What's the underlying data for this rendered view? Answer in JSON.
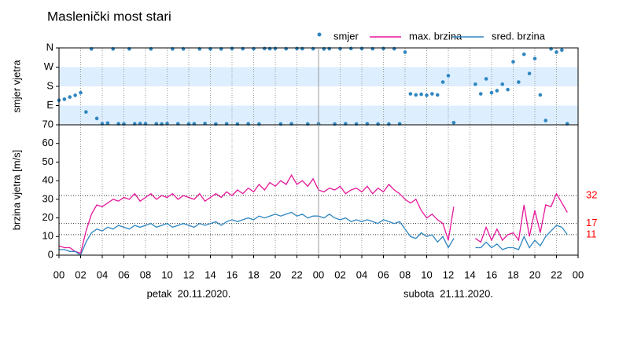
{
  "chart_data": [
    {
      "type": "scatter",
      "title": "Maslenički most stari",
      "ylabel": "smjer vjetra",
      "x": [
        0,
        0.5,
        1,
        1.5,
        2,
        2.5,
        3,
        3.5,
        4,
        4.5,
        5,
        5.5,
        6,
        6.5,
        7,
        7.5,
        8,
        8.5,
        9,
        9.5,
        10,
        10.5,
        11,
        11.5,
        12,
        12.5,
        13,
        13.5,
        14,
        14.5,
        15,
        15.5,
        16,
        16.5,
        17,
        17.5,
        18,
        18.5,
        19,
        19.5,
        20,
        20.5,
        21,
        21.5,
        22,
        22.5,
        23,
        23.5,
        24,
        24.5,
        25,
        25.5,
        26,
        26.5,
        27,
        27.5,
        28,
        28.5,
        29,
        29.5,
        30,
        30.5,
        31,
        31.5,
        32,
        32.5,
        33,
        33.5,
        34,
        34.5,
        35,
        35.5,
        36,
        36.5,
        37,
        37.5,
        38,
        38.5,
        39,
        39.5,
        40,
        40.5,
        41,
        41.5,
        42,
        42.5,
        43,
        43.5,
        44,
        44.5,
        45,
        45.5,
        46,
        46.5,
        47
      ],
      "series": [
        {
          "name": "smjer",
          "color": "#2e86c1",
          "values": [
            115,
            120,
            130,
            138,
            150,
            60,
            355,
            30,
            5,
            8,
            355,
            5,
            4,
            355,
            5,
            6,
            5,
            355,
            5,
            4,
            6,
            355,
            5,
            355,
            4,
            5,
            355,
            6,
            355,
            4,
            355,
            5,
            357,
            4,
            356,
            5,
            356,
            4,
            357,
            356,
            357,
            4,
            356,
            5,
            357,
            356,
            4,
            356,
            5,
            355,
            356,
            4,
            356,
            5,
            357,
            4,
            357,
            5,
            356,
            4,
            357,
            4,
            356,
            5,
            340,
            145,
            140,
            143,
            138,
            145,
            140,
            200,
            230,
            10,
            null,
            null,
            null,
            190,
            145,
            215,
            150,
            160,
            190,
            165,
            295,
            200,
            330,
            240,
            310,
            140,
            20,
            355,
            340,
            350,
            5
          ]
        }
      ],
      "xlim": [
        0,
        48
      ],
      "ylim": [
        0,
        360
      ],
      "yticks": [
        {
          "value": 90,
          "label": "E"
        },
        {
          "value": 180,
          "label": "S"
        },
        {
          "value": 270,
          "label": "W"
        },
        {
          "value": 360,
          "label": "N"
        }
      ],
      "bands": [
        [
          0,
          90
        ],
        [
          180,
          270
        ]
      ],
      "band_color": "#ddeeff"
    },
    {
      "type": "line",
      "ylabel": "brzina vjetra [m/s]",
      "x": [
        0,
        0.5,
        1,
        1.5,
        2,
        2.5,
        3,
        3.5,
        4,
        4.5,
        5,
        5.5,
        6,
        6.5,
        7,
        7.5,
        8,
        8.5,
        9,
        9.5,
        10,
        10.5,
        11,
        11.5,
        12,
        12.5,
        13,
        13.5,
        14,
        14.5,
        15,
        15.5,
        16,
        16.5,
        17,
        17.5,
        18,
        18.5,
        19,
        19.5,
        20,
        20.5,
        21,
        21.5,
        22,
        22.5,
        23,
        23.5,
        24,
        24.5,
        25,
        25.5,
        26,
        26.5,
        27,
        27.5,
        28,
        28.5,
        29,
        29.5,
        30,
        30.5,
        31,
        31.5,
        32,
        32.5,
        33,
        33.5,
        34,
        34.5,
        35,
        35.5,
        36,
        36.5,
        37,
        37.5,
        38,
        38.5,
        39,
        39.5,
        40,
        40.5,
        41,
        41.5,
        42,
        42.5,
        43,
        43.5,
        44,
        44.5,
        45,
        45.5,
        46,
        46.5,
        47
      ],
      "series": [
        {
          "name": "max. brzina",
          "color": "#e6169a",
          "values": [
            5,
            4,
            4,
            2,
            1,
            13,
            22,
            27,
            26,
            28,
            30,
            29,
            31,
            30,
            33,
            29,
            31,
            33,
            30,
            32,
            31,
            33,
            30,
            32,
            31,
            30,
            33,
            29,
            31,
            33,
            31,
            34,
            32,
            35,
            33,
            36,
            34,
            38,
            35,
            39,
            37,
            40,
            38,
            43,
            38,
            40,
            37,
            41,
            35,
            34,
            36,
            35,
            37,
            33,
            35,
            36,
            34,
            37,
            33,
            36,
            34,
            38,
            35,
            33,
            30,
            28,
            30,
            24,
            20,
            22,
            19,
            17,
            8,
            26,
            null,
            null,
            null,
            9,
            7,
            15,
            8,
            14,
            8,
            11,
            12,
            8,
            27,
            10,
            24,
            12,
            27,
            26,
            33,
            28,
            23
          ]
        },
        {
          "name": "sred. brzina",
          "color": "#2e86c1",
          "values": [
            3,
            3,
            2,
            2,
            0,
            7,
            12,
            14,
            13,
            15,
            14,
            16,
            15,
            14,
            16,
            15,
            16,
            17,
            15,
            16,
            17,
            15,
            16,
            17,
            16,
            15,
            17,
            16,
            17,
            18,
            16,
            18,
            19,
            18,
            19,
            20,
            19,
            21,
            20,
            21,
            22,
            21,
            22,
            23,
            21,
            22,
            20,
            21,
            21,
            20,
            22,
            20,
            19,
            20,
            18,
            19,
            18,
            19,
            18,
            17,
            19,
            18,
            17,
            18,
            14,
            10,
            9,
            12,
            10,
            11,
            7,
            10,
            4,
            9,
            null,
            null,
            null,
            4,
            4,
            7,
            4,
            6,
            3,
            4,
            4,
            3,
            10,
            4,
            8,
            5,
            10,
            13,
            16,
            15,
            11
          ]
        }
      ],
      "xlim": [
        0,
        48
      ],
      "ylim": [
        0,
        70
      ],
      "yticks": [
        0,
        10,
        20,
        30,
        40,
        50,
        60,
        70
      ],
      "xticks": [
        {
          "value": 0,
          "label": "00"
        },
        {
          "value": 2,
          "label": "02"
        },
        {
          "value": 4,
          "label": "04"
        },
        {
          "value": 6,
          "label": "06"
        },
        {
          "value": 8,
          "label": "08"
        },
        {
          "value": 10,
          "label": "10"
        },
        {
          "value": 12,
          "label": "12"
        },
        {
          "value": 14,
          "label": "14"
        },
        {
          "value": 16,
          "label": "16"
        },
        {
          "value": 18,
          "label": "18"
        },
        {
          "value": 20,
          "label": "20"
        },
        {
          "value": 22,
          "label": "22"
        },
        {
          "value": 24,
          "label": "00"
        },
        {
          "value": 26,
          "label": "02"
        },
        {
          "value": 28,
          "label": "04"
        },
        {
          "value": 30,
          "label": "06"
        },
        {
          "value": 32,
          "label": "08"
        },
        {
          "value": 34,
          "label": "10"
        },
        {
          "value": 36,
          "label": "12"
        },
        {
          "value": 38,
          "label": "14"
        },
        {
          "value": 40,
          "label": "16"
        },
        {
          "value": 42,
          "label": "18"
        },
        {
          "value": 44,
          "label": "20"
        },
        {
          "value": 46,
          "label": "22"
        },
        {
          "value": 48,
          "label": "00"
        }
      ],
      "day_labels": [
        {
          "value": 12,
          "label": "petak  20.11.2020."
        },
        {
          "value": 36,
          "label": "subota  21.11.2020."
        }
      ],
      "reference_lines": [
        32,
        17,
        11
      ],
      "reference_color": "#ff0000"
    }
  ]
}
